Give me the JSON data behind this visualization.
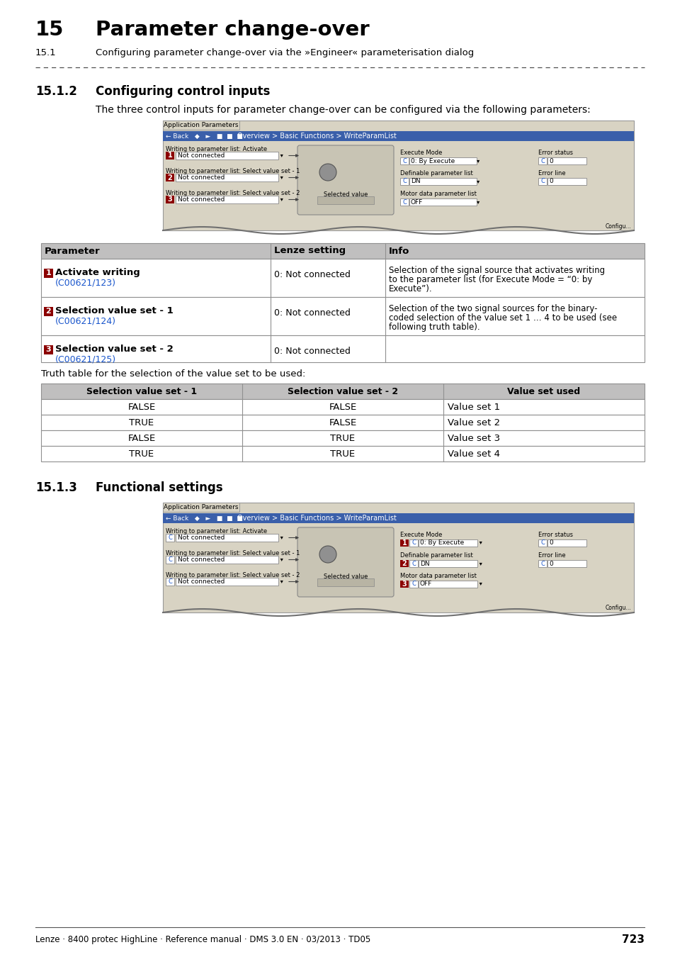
{
  "page_title_num": "15",
  "page_title_text": "Parameter change-over",
  "page_subtitle_num": "15.1",
  "page_subtitle_text": "Configuring parameter change-over via the »Engineer« parameterisation dialog",
  "section1_num": "15.1.2",
  "section1_title": "Configuring control inputs",
  "section1_intro": "The three control inputs for parameter change-over can be configured via the following parameters:",
  "param_table_headers": [
    "Parameter",
    "Lenze setting",
    "Info"
  ],
  "param_table_rows": [
    {
      "num": "1",
      "param": "Activate writing",
      "link": "(C00621/123)",
      "lenze": "0: Not connected",
      "info_lines": [
        "Selection of the signal source that activates writing",
        "to the parameter list (for Execute Mode = “0: by",
        "Execute”)."
      ]
    },
    {
      "num": "2",
      "param": "Selection value set - 1",
      "link": "(C00621/124)",
      "lenze": "0: Not connected",
      "info_lines": [
        "Selection of the two signal sources for the binary-",
        "coded selection of the value set 1 … 4 to be used (see",
        "following truth table)."
      ]
    },
    {
      "num": "3",
      "param": "Selection value set - 2",
      "link": "(C00621/125)",
      "lenze": "0: Not connected",
      "info_lines": []
    }
  ],
  "truth_table_intro": "Truth table for the selection of the value set to be used:",
  "truth_table_headers": [
    "Selection value set - 1",
    "Selection value set - 2",
    "Value set used"
  ],
  "truth_table_rows": [
    [
      "FALSE",
      "FALSE",
      "Value set 1"
    ],
    [
      "TRUE",
      "FALSE",
      "Value set 2"
    ],
    [
      "FALSE",
      "TRUE",
      "Value set 3"
    ],
    [
      "TRUE",
      "TRUE",
      "Value set 4"
    ]
  ],
  "section2_num": "15.1.3",
  "section2_title": "Functional settings",
  "footer_text": "Lenze · 8400 protec HighLine · Reference manual · DMS 3.0 EN · 03/2013 · TD05",
  "footer_page": "723",
  "bg_color": "#ffffff",
  "header_bg": "#c0bfbf",
  "dark_red": "#8b0000",
  "blue_link": "#1a56cc",
  "execute_mode_link": "#1a56cc",
  "table_border": "#909090",
  "dashed_line_color": "#505050",
  "screenshot_bg": "#d8d3c3",
  "screenshot_blue_bar": "#3a5faa",
  "text_color": "#000000",
  "white": "#ffffff",
  "gray_dd": "#e8e8e8"
}
